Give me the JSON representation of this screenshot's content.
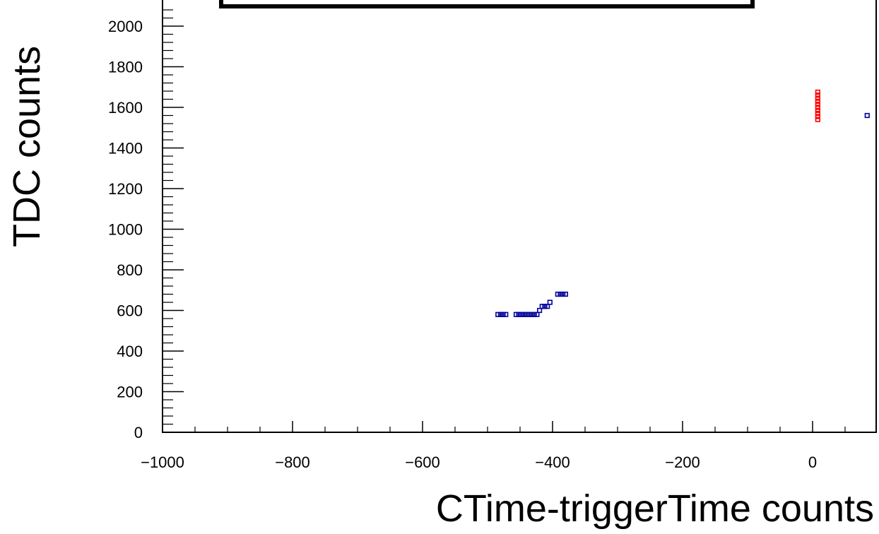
{
  "chart_data": {
    "type": "scatter",
    "title": "",
    "xlabel": "CTime-triggerTime counts",
    "ylabel": "TDC counts",
    "xlim": [
      -1000,
      100
    ],
    "ylim": [
      0,
      2100
    ],
    "x_ticks": [
      -1000,
      -800,
      -600,
      -400,
      -200,
      0
    ],
    "x_tick_labels": [
      "−1000",
      "−800",
      "−600",
      "−400",
      "−200",
      "0"
    ],
    "y_ticks": [
      0,
      200,
      400,
      600,
      800,
      1000,
      1200,
      1400,
      1600,
      1800,
      2000
    ],
    "y_tick_labels": [
      "0",
      "200",
      "400",
      "600",
      "800",
      "1000",
      "1200",
      "1400",
      "1600",
      "1800",
      "2000"
    ],
    "grid": false,
    "legend": "none",
    "series": [
      {
        "color": "#000099",
        "marker": "open-square",
        "points": [
          [
            -484,
            580
          ],
          [
            -480,
            580
          ],
          [
            -476,
            580
          ],
          [
            -472,
            580
          ],
          [
            -456,
            580
          ],
          [
            -452,
            580
          ],
          [
            -448,
            580
          ],
          [
            -444,
            580
          ],
          [
            -440,
            580
          ],
          [
            -436,
            580
          ],
          [
            -432,
            580
          ],
          [
            -428,
            580
          ],
          [
            -424,
            580
          ],
          [
            -420,
            600
          ],
          [
            -416,
            620
          ],
          [
            -412,
            620
          ],
          [
            -408,
            620
          ],
          [
            -404,
            640
          ],
          [
            -392,
            680
          ],
          [
            -388,
            680
          ],
          [
            -384,
            680
          ],
          [
            -380,
            680
          ],
          [
            84,
            1560
          ]
        ]
      },
      {
        "color": "#ff0000",
        "marker": "open-square",
        "points": [
          [
            8,
            1540
          ],
          [
            8,
            1555
          ],
          [
            8,
            1570
          ],
          [
            8,
            1585
          ],
          [
            8,
            1600
          ],
          [
            8,
            1615
          ],
          [
            8,
            1630
          ],
          [
            8,
            1645
          ],
          [
            8,
            1660
          ],
          [
            8,
            1675
          ]
        ]
      }
    ]
  }
}
